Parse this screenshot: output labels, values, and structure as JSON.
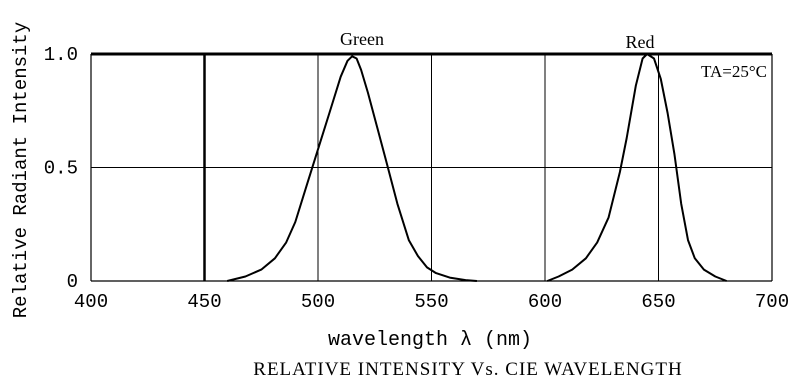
{
  "chart_data": {
    "type": "line",
    "xlabel": "wavelength λ (nm)",
    "ylabel": "Relative Radiant Intensity",
    "caption": "RELATIVE INTENSITY Vs. CIE WAVELENGTH",
    "annotation": "TA=25°C",
    "xlim": [
      400,
      700
    ],
    "ylim": [
      0,
      1.0
    ],
    "x_ticks": [
      400,
      450,
      500,
      550,
      600,
      650,
      700
    ],
    "x_tick_labels": [
      "400",
      "450",
      "500",
      "550",
      "600",
      "650",
      "700"
    ],
    "y_ticks": [
      0,
      0.5,
      1.0
    ],
    "y_tick_labels": [
      "0",
      "0.5",
      "1.0"
    ],
    "grid": true,
    "series": [
      {
        "name": "Green",
        "x": [
          460,
          468,
          475,
          481,
          486,
          490,
          495,
          500,
          505,
          510,
          513,
          515,
          517,
          519,
          522,
          526,
          530,
          535,
          540,
          544,
          548,
          552,
          558,
          565,
          570
        ],
        "y": [
          0.0,
          0.02,
          0.05,
          0.1,
          0.17,
          0.26,
          0.42,
          0.58,
          0.74,
          0.9,
          0.97,
          0.99,
          0.98,
          0.93,
          0.83,
          0.68,
          0.53,
          0.34,
          0.18,
          0.11,
          0.06,
          0.035,
          0.015,
          0.004,
          0.0
        ]
      },
      {
        "name": "Red",
        "x": [
          601,
          606,
          612,
          618,
          623,
          628,
          633,
          636,
          640,
          643,
          645,
          648,
          651,
          654,
          657,
          660,
          663,
          666,
          670,
          675,
          680
        ],
        "y": [
          0.0,
          0.02,
          0.05,
          0.1,
          0.17,
          0.28,
          0.48,
          0.63,
          0.86,
          0.98,
          1.0,
          0.98,
          0.89,
          0.74,
          0.56,
          0.34,
          0.18,
          0.1,
          0.05,
          0.02,
          0.0
        ]
      }
    ]
  }
}
